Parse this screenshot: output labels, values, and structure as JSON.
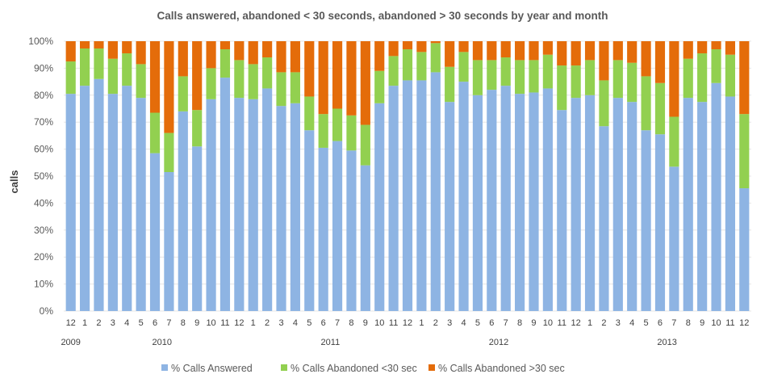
{
  "chart_data": {
    "type": "bar",
    "stacked": "percent",
    "title": "Calls answered, abandoned < 30 seconds, abandoned > 30 seconds by year and month",
    "xlabel": "",
    "ylabel": "calls",
    "ylim": [
      0,
      100
    ],
    "yticks": [
      "0%",
      "10%",
      "20%",
      "30%",
      "40%",
      "50%",
      "60%",
      "70%",
      "80%",
      "90%",
      "100%"
    ],
    "grid": true,
    "legend_position": "bottom",
    "years": [
      {
        "label": "2009",
        "months": [
          "12"
        ]
      },
      {
        "label": "2010",
        "months": [
          "1",
          "2",
          "3",
          "4",
          "5",
          "6",
          "7",
          "8",
          "9",
          "10",
          "11",
          "12"
        ]
      },
      {
        "label": "2011",
        "months": [
          "1",
          "2",
          "3",
          "4",
          "5",
          "6",
          "7",
          "8",
          "9",
          "10",
          "11",
          "12"
        ]
      },
      {
        "label": "2012",
        "months": [
          "1",
          "2",
          "3",
          "4",
          "5",
          "6",
          "7",
          "8",
          "9",
          "10",
          "11",
          "12"
        ]
      },
      {
        "label": "2013",
        "months": [
          "1",
          "2",
          "3",
          "4",
          "5",
          "6",
          "7",
          "8",
          "9",
          "10",
          "11",
          "12"
        ]
      }
    ],
    "series": [
      {
        "name": "% Calls Answered",
        "color": "#8EB4E3",
        "values": [
          80.5,
          83.5,
          86,
          80.5,
          83.5,
          79,
          58.5,
          51.5,
          74,
          61,
          78.5,
          86.5,
          79,
          78.5,
          82.5,
          76,
          77,
          67,
          60.5,
          63,
          59.5,
          54,
          77,
          83.5,
          85.5,
          85.5,
          88.5,
          77.5,
          85,
          80,
          82,
          83.5,
          80.5,
          81,
          82.5,
          74.5,
          79,
          80,
          68.5,
          79,
          77.5,
          67,
          65.5,
          53.5,
          79,
          77.5,
          84.5,
          79.5,
          45.5
        ]
      },
      {
        "name": "% Calls Abandoned <30 sec",
        "color": "#92D050",
        "values": [
          12,
          13.8,
          11.3,
          13,
          12,
          12.5,
          15,
          14.5,
          13,
          13.5,
          11.5,
          10.5,
          14,
          13,
          11.5,
          12.5,
          11.5,
          12.5,
          12.5,
          12,
          13,
          15,
          12,
          11,
          11.5,
          10.5,
          10.8,
          13,
          11,
          13,
          11,
          10.5,
          12.5,
          12,
          12.5,
          16.5,
          12,
          13,
          17,
          14,
          14.5,
          20,
          19,
          18.5,
          14.5,
          18,
          12.5,
          15.5,
          27.5
        ]
      },
      {
        "name": "% Calls Abandoned >30 sec",
        "color": "#E46C0A",
        "values": [
          7.5,
          2.7,
          2.7,
          6.5,
          4.5,
          8.5,
          26.5,
          34,
          13,
          25.5,
          10,
          3,
          7,
          8.5,
          6,
          11.5,
          11.5,
          20.5,
          27,
          25,
          27.5,
          31,
          11,
          5.5,
          3,
          4,
          0.7,
          9.5,
          4,
          7,
          7,
          6,
          7,
          7,
          5,
          9,
          9,
          7,
          14.5,
          7,
          8,
          13,
          15.5,
          28,
          6.5,
          4.5,
          3,
          5,
          27
        ]
      }
    ]
  }
}
